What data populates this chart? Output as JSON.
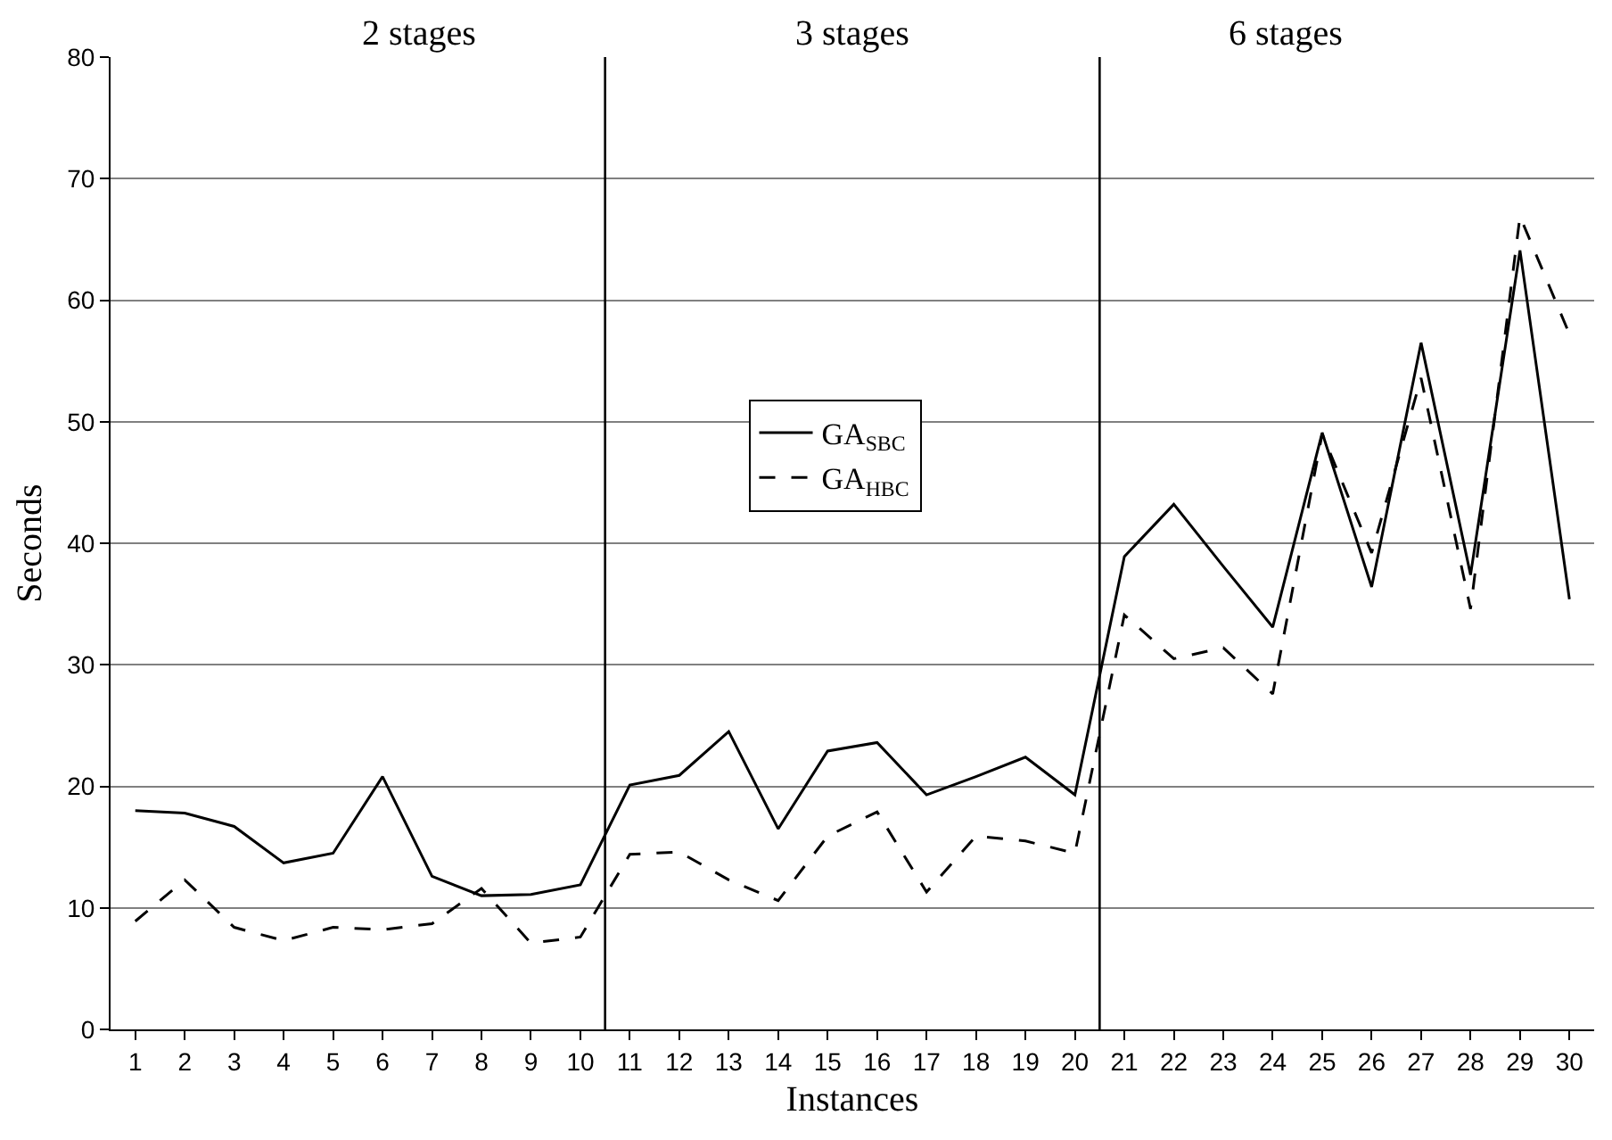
{
  "chart_data": {
    "type": "line",
    "xlabel": "Instances",
    "ylabel": "Seconds",
    "x": [
      1,
      2,
      3,
      4,
      5,
      6,
      7,
      8,
      9,
      10,
      11,
      12,
      13,
      14,
      15,
      16,
      17,
      18,
      19,
      20,
      21,
      22,
      23,
      24,
      25,
      26,
      27,
      28,
      29,
      30
    ],
    "xlim": [
      0.5,
      30.5
    ],
    "xticks": [
      1,
      2,
      3,
      4,
      5,
      6,
      7,
      8,
      9,
      10,
      11,
      12,
      13,
      14,
      15,
      16,
      17,
      18,
      19,
      20,
      21,
      22,
      23,
      24,
      25,
      26,
      27,
      28,
      29,
      30
    ],
    "ylim": [
      0,
      80
    ],
    "yticks": [
      0,
      10,
      20,
      30,
      40,
      50,
      60,
      70,
      80
    ],
    "series": [
      {
        "name": "GA$_{SBC}$",
        "color": "#000000",
        "line_style": "solid",
        "values": [
          18.0,
          17.8,
          16.7,
          13.7,
          14.5,
          20.8,
          12.6,
          11.0,
          11.1,
          11.9,
          20.1,
          20.9,
          24.5,
          16.5,
          22.9,
          23.6,
          19.3,
          20.8,
          22.4,
          19.3,
          38.9,
          43.2,
          38.1,
          33.1,
          49.1,
          36.4,
          56.5,
          37.4,
          64.1,
          35.4
        ]
      },
      {
        "name": "GA$_{HBC}$",
        "color": "#000000",
        "line_style": "dashed",
        "values": [
          8.9,
          12.3,
          8.4,
          7.3,
          8.4,
          8.2,
          8.7,
          11.6,
          7.1,
          7.6,
          14.4,
          14.6,
          12.3,
          10.6,
          15.9,
          17.9,
          11.3,
          15.9,
          15.5,
          14.5,
          34.1,
          30.5,
          31.4,
          27.6,
          49.0,
          39.2,
          53.6,
          34.6,
          66.9,
          57.2
        ]
      }
    ],
    "ref_lines": [
      {
        "axis": "x",
        "value": 10.5,
        "color": "#000000"
      },
      {
        "axis": "x",
        "value": 20.5,
        "color": "#000000"
      }
    ],
    "annotations": [
      "2 stages",
      "3 stages",
      "6 stages"
    ],
    "grid": "y",
    "legend": "center",
    "marker": "none"
  }
}
